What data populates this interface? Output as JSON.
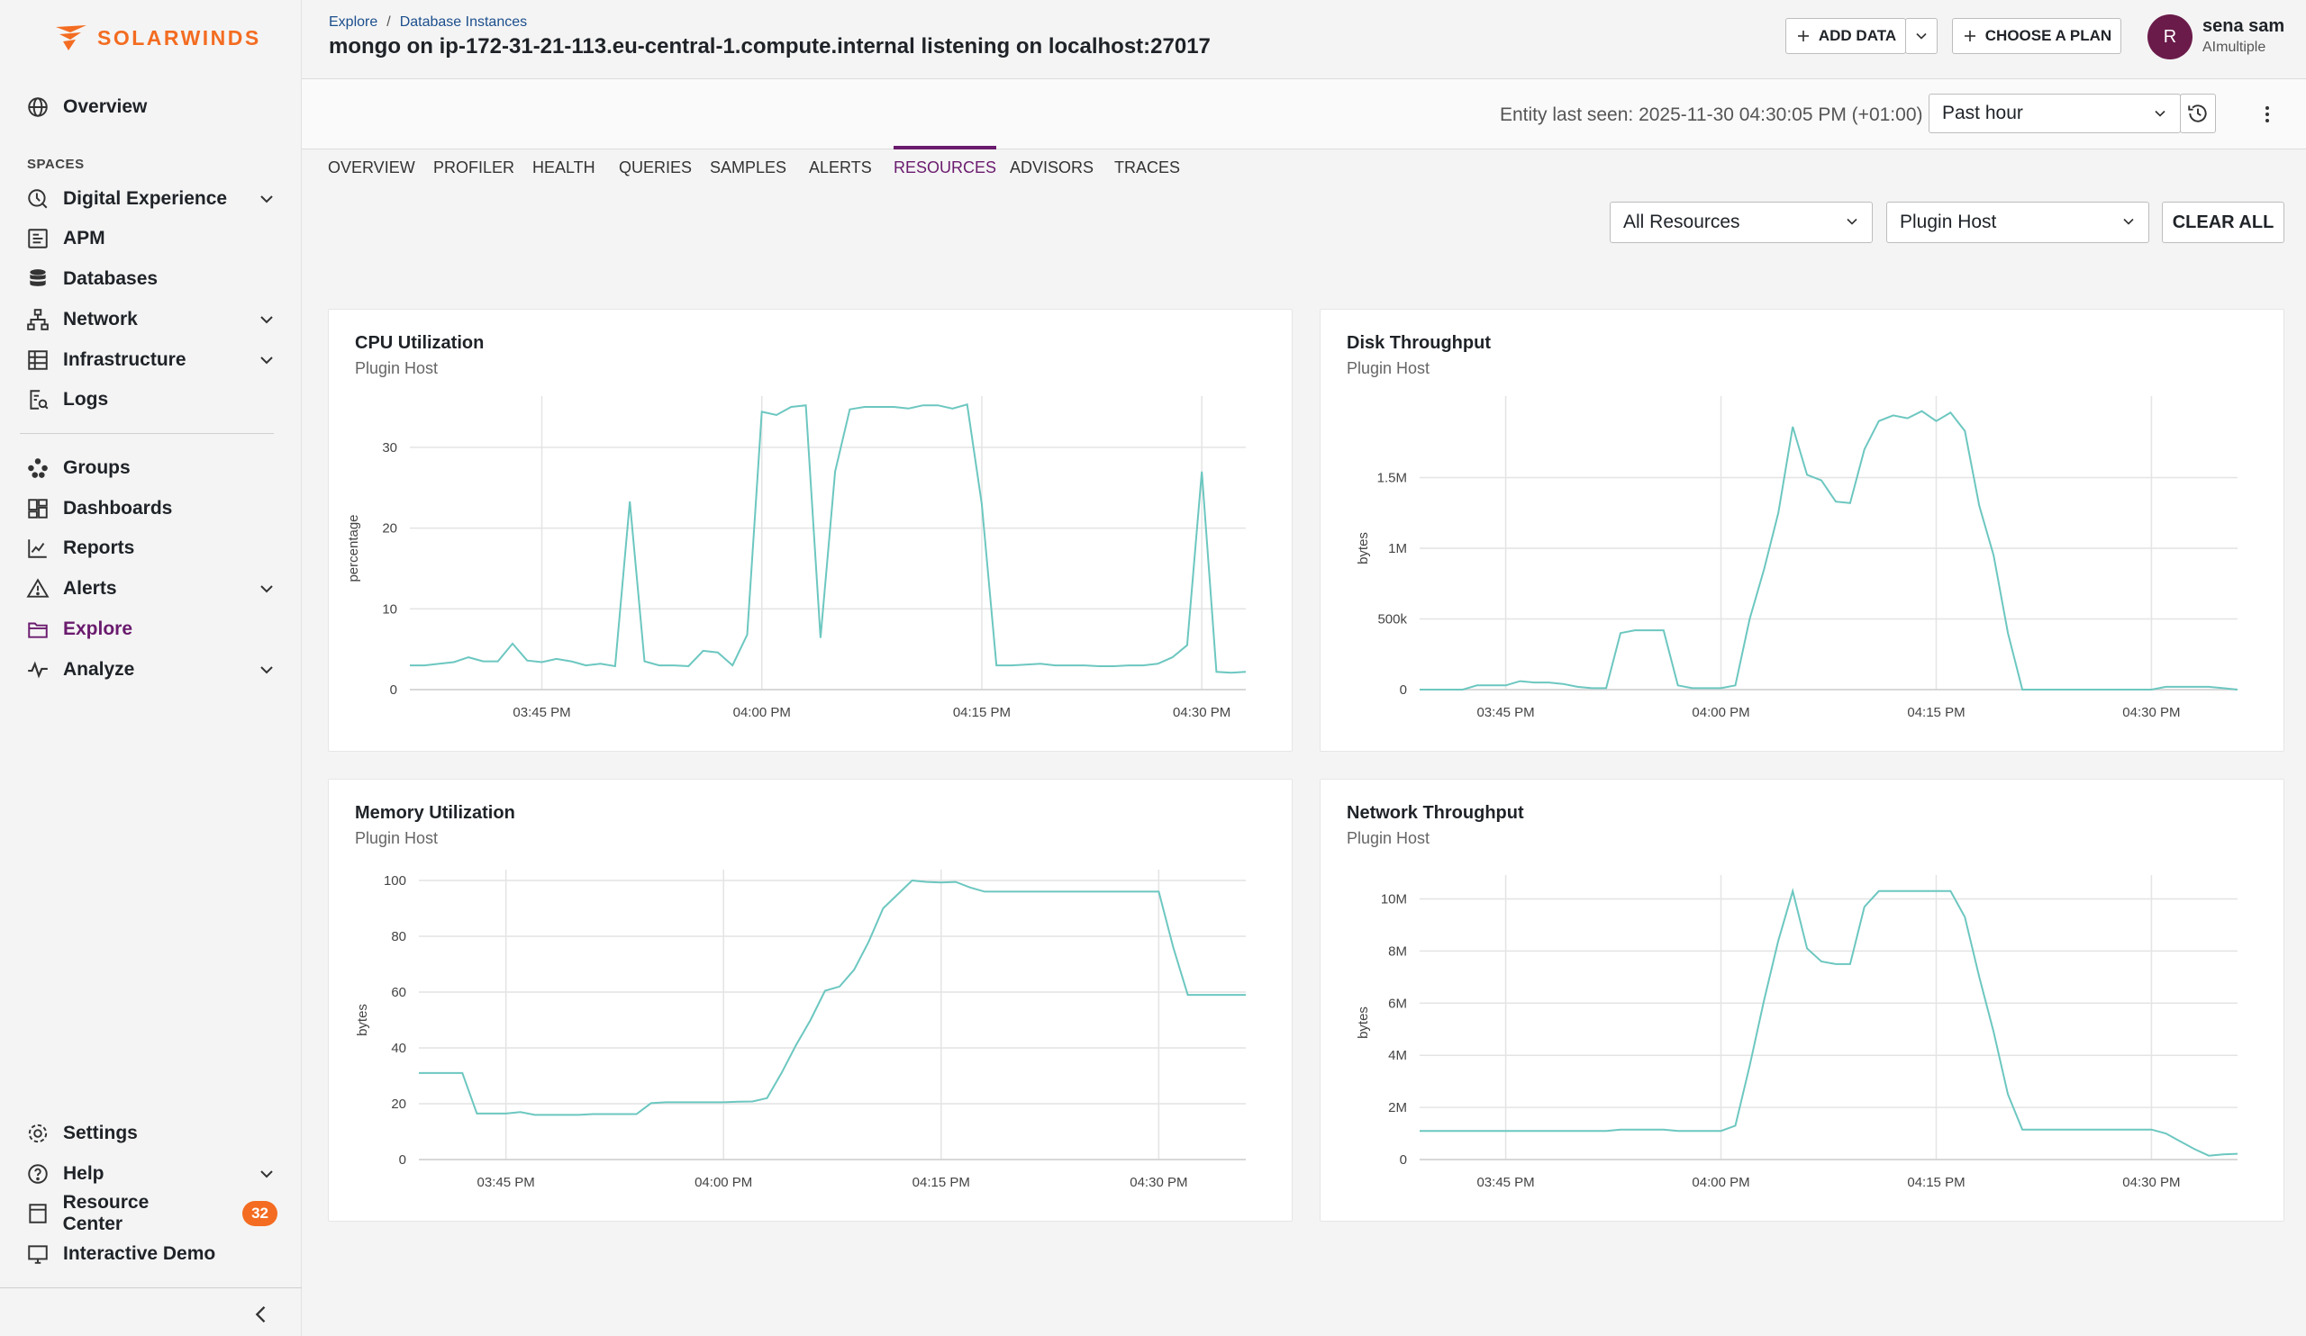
{
  "app": {
    "logo_text": "SOLARWINDS"
  },
  "sidebar": {
    "overview": "Overview",
    "spaces_label": "SPACES",
    "items": [
      {
        "label": "Digital Experience",
        "icon": "digital-experience-icon",
        "expandable": true
      },
      {
        "label": "APM",
        "icon": "apm-icon",
        "expandable": false
      },
      {
        "label": "Databases",
        "icon": "database-icon",
        "expandable": false
      },
      {
        "label": "Network",
        "icon": "network-icon",
        "expandable": true
      },
      {
        "label": "Infrastructure",
        "icon": "infrastructure-icon",
        "expandable": true
      },
      {
        "label": "Logs",
        "icon": "logs-icon",
        "expandable": false
      }
    ],
    "items2": [
      {
        "label": "Groups",
        "icon": "groups-icon",
        "expandable": false
      },
      {
        "label": "Dashboards",
        "icon": "dashboards-icon",
        "expandable": false
      },
      {
        "label": "Reports",
        "icon": "reports-icon",
        "expandable": false
      },
      {
        "label": "Alerts",
        "icon": "alerts-icon",
        "expandable": true
      },
      {
        "label": "Explore",
        "icon": "explore-icon",
        "expandable": false,
        "active": true
      },
      {
        "label": "Analyze",
        "icon": "analyze-icon",
        "expandable": true
      }
    ],
    "bottom": [
      {
        "label": "Settings",
        "icon": "settings-icon"
      },
      {
        "label": "Help",
        "icon": "help-icon"
      },
      {
        "label": "Resource Center",
        "icon": "resource-center-icon",
        "badge": "32"
      },
      {
        "label": "Interactive Demo",
        "icon": "interactive-demo-icon"
      }
    ]
  },
  "header": {
    "breadcrumb": [
      "Explore",
      "Database Instances"
    ],
    "breadcrumb_sep": "/",
    "title": "mongo on ip-172-31-21-113.eu-central-1.compute.internal listening on localhost:27017",
    "add_data": "ADD DATA",
    "choose_plan": "CHOOSE A PLAN",
    "user_initial": "R",
    "user_name": "sena sam",
    "user_org": "AImultiple"
  },
  "subheader": {
    "entity_last_seen": "Entity last seen: 2025-11-30 04:30:05 PM (+01:00)",
    "time_range": "Past hour"
  },
  "tabs": [
    "OVERVIEW",
    "PROFILER",
    "HEALTH",
    "QUERIES",
    "SAMPLES",
    "ALERTS",
    "RESOURCES",
    "ADVISORS",
    "TRACES"
  ],
  "active_tab": "RESOURCES",
  "filters": {
    "resources": "All Resources",
    "host": "Plugin Host",
    "clear_all": "CLEAR ALL"
  },
  "colors": {
    "accent": "#6a1b6e",
    "brand": "#f36c21",
    "series": "#6cc7c0"
  },
  "chart_data": [
    {
      "type": "line",
      "title": "CPU Utilization",
      "subtitle": "Plugin Host",
      "ylabel": "percentage",
      "ylim": [
        0,
        35
      ],
      "yticks": [
        0,
        10,
        20,
        30
      ],
      "ytick_labels": [
        "0",
        "10",
        "20",
        "30"
      ],
      "xlim": [
        0,
        57
      ],
      "xticks": [
        9,
        24,
        39,
        54
      ],
      "xtick_labels": [
        "03:45 PM",
        "04:00 PM",
        "04:15 PM",
        "04:30 PM"
      ],
      "x": [
        0,
        1,
        2,
        3,
        4,
        5,
        6,
        7,
        8,
        9,
        10,
        11,
        12,
        13,
        14,
        15,
        16,
        17,
        18,
        19,
        20,
        21,
        22,
        23,
        24,
        25,
        26,
        27,
        28,
        29,
        30,
        31,
        32,
        33,
        34,
        35,
        36,
        37,
        38,
        39,
        40,
        41,
        42,
        43,
        44,
        45,
        46,
        47,
        48,
        49,
        50,
        51,
        52,
        53,
        54,
        55,
        56,
        57
      ],
      "values": [
        3,
        3,
        3.2,
        3.4,
        4,
        3.5,
        3.5,
        5.7,
        3.6,
        3.4,
        3.8,
        3.5,
        3,
        3.2,
        2.9,
        23.3,
        3.5,
        3,
        3,
        2.9,
        4.8,
        4.6,
        3,
        6.8,
        34.4,
        34,
        35,
        35.2,
        6.4,
        27,
        34.7,
        35,
        35,
        35,
        34.8,
        35.2,
        35.2,
        34.8,
        35.3,
        23,
        3,
        3,
        3.1,
        3.2,
        3,
        3,
        3,
        2.9,
        2.9,
        3,
        3,
        3.2,
        4,
        5.5,
        27,
        2.2,
        2.1,
        2.2
      ]
    },
    {
      "type": "line",
      "title": "Disk Throughput",
      "subtitle": "Plugin Host",
      "ylabel": "bytes",
      "ylim": [
        0,
        2000000
      ],
      "yticks": [
        0,
        500000,
        1000000,
        1500000
      ],
      "ytick_labels": [
        "0",
        "500k",
        "1M",
        "1.5M"
      ],
      "xlim": [
        0,
        57
      ],
      "xticks": [
        6,
        21,
        36,
        51
      ],
      "xtick_labels": [
        "03:45 PM",
        "04:00 PM",
        "04:15 PM",
        "04:30 PM"
      ],
      "x": [
        0,
        1,
        2,
        3,
        4,
        5,
        6,
        7,
        8,
        9,
        10,
        11,
        12,
        13,
        14,
        15,
        16,
        17,
        18,
        19,
        20,
        21,
        22,
        23,
        24,
        25,
        26,
        27,
        28,
        29,
        30,
        31,
        32,
        33,
        34,
        35,
        36,
        37,
        38,
        39,
        40,
        41,
        42,
        43,
        44,
        45,
        46,
        47,
        48,
        49,
        50,
        51,
        52,
        53,
        54,
        55,
        56,
        57
      ],
      "values": [
        0,
        0,
        0,
        0,
        30000,
        30000,
        30000,
        60000,
        50000,
        50000,
        40000,
        20000,
        10000,
        10000,
        400000,
        420000,
        420000,
        420000,
        30000,
        10000,
        10000,
        10000,
        30000,
        500000,
        850000,
        1250000,
        1860000,
        1520000,
        1480000,
        1330000,
        1320000,
        1700000,
        1900000,
        1940000,
        1920000,
        1970000,
        1900000,
        1960000,
        1830000,
        1300000,
        950000,
        400000,
        0,
        0,
        0,
        0,
        0,
        0,
        0,
        0,
        0,
        0,
        20000,
        20000,
        20000,
        20000,
        10000,
        0
      ]
    },
    {
      "type": "line",
      "title": "Memory Utilization",
      "subtitle": "Plugin Host",
      "ylabel": "bytes",
      "ylim": [
        0,
        100
      ],
      "yticks": [
        0,
        20,
        40,
        60,
        80,
        100
      ],
      "ytick_labels": [
        "0",
        "20",
        "40",
        "60",
        "80",
        "100"
      ],
      "xlim": [
        0,
        57
      ],
      "xticks": [
        6,
        21,
        36,
        51
      ],
      "xtick_labels": [
        "03:45 PM",
        "04:00 PM",
        "04:15 PM",
        "04:30 PM"
      ],
      "x": [
        0,
        1,
        2,
        3,
        4,
        5,
        6,
        7,
        8,
        9,
        10,
        11,
        12,
        13,
        14,
        15,
        16,
        17,
        18,
        19,
        20,
        21,
        22,
        23,
        24,
        25,
        26,
        27,
        28,
        29,
        30,
        31,
        32,
        33,
        34,
        35,
        36,
        37,
        38,
        39,
        40,
        41,
        42,
        43,
        44,
        45,
        46,
        47,
        48,
        49,
        50,
        51,
        52,
        53,
        54,
        55,
        56,
        57
      ],
      "values": [
        31,
        31,
        31,
        31,
        16.5,
        16.5,
        16.5,
        17,
        16,
        16,
        16,
        16,
        16.3,
        16.3,
        16.3,
        16.3,
        20.2,
        20.5,
        20.5,
        20.5,
        20.5,
        20.5,
        20.7,
        20.8,
        22,
        31,
        41,
        50,
        60.5,
        62,
        68,
        78,
        90,
        95,
        100,
        99.5,
        99.3,
        99.5,
        97.5,
        96,
        96,
        96,
        96,
        96,
        96,
        96,
        96,
        96,
        96,
        96,
        96,
        96,
        76,
        59,
        59,
        59,
        59,
        59
      ]
    },
    {
      "type": "line",
      "title": "Network Throughput",
      "subtitle": "Plugin Host",
      "ylabel": "bytes",
      "ylim": [
        0,
        10500000
      ],
      "yticks": [
        0,
        2000000,
        4000000,
        6000000,
        8000000,
        10000000
      ],
      "ytick_labels": [
        "0",
        "2M",
        "4M",
        "6M",
        "8M",
        "10M"
      ],
      "xlim": [
        0,
        57
      ],
      "xticks": [
        6,
        21,
        36,
        51
      ],
      "xtick_labels": [
        "03:45 PM",
        "04:00 PM",
        "04:15 PM",
        "04:30 PM"
      ],
      "x": [
        0,
        1,
        2,
        3,
        4,
        5,
        6,
        7,
        8,
        9,
        10,
        11,
        12,
        13,
        14,
        15,
        16,
        17,
        18,
        19,
        20,
        21,
        22,
        23,
        24,
        25,
        26,
        27,
        28,
        29,
        30,
        31,
        32,
        33,
        34,
        35,
        36,
        37,
        38,
        39,
        40,
        41,
        42,
        43,
        44,
        45,
        46,
        47,
        48,
        49,
        50,
        51,
        52,
        53,
        54,
        55,
        56,
        57
      ],
      "values": [
        1100000,
        1100000,
        1100000,
        1100000,
        1100000,
        1100000,
        1100000,
        1100000,
        1100000,
        1100000,
        1100000,
        1100000,
        1100000,
        1100000,
        1150000,
        1150000,
        1150000,
        1150000,
        1100000,
        1100000,
        1100000,
        1100000,
        1300000,
        3600000,
        6100000,
        8400000,
        10300000,
        8100000,
        7600000,
        7500000,
        7500000,
        9700000,
        10300000,
        10300000,
        10300000,
        10300000,
        10300000,
        10300000,
        9300000,
        7000000,
        4900000,
        2500000,
        1150000,
        1150000,
        1150000,
        1150000,
        1150000,
        1150000,
        1150000,
        1150000,
        1150000,
        1150000,
        1000000,
        700000,
        400000,
        150000,
        200000,
        220000
      ]
    }
  ]
}
